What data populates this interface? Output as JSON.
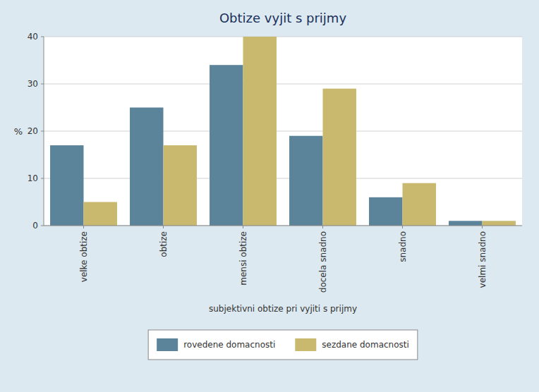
{
  "chart_data": {
    "type": "bar",
    "title": "Obtize vyjit s prijmy",
    "xlabel": "subjektivni obtize pri vyjiti s prijmy",
    "ylabel": "%",
    "categories": [
      "velke obtize",
      "obtize",
      "mensi obtize",
      "docela snadno",
      "snadno",
      "velmi snadno"
    ],
    "series": [
      {
        "name": "rovedene domacnosti",
        "color": "#5b849a",
        "values": [
          17,
          25,
          34,
          19,
          6,
          1
        ]
      },
      {
        "name": "sezdane domacnosti",
        "color": "#c8b96e",
        "values": [
          5,
          17,
          40,
          29,
          9,
          1
        ]
      }
    ],
    "ylim": [
      0,
      40
    ],
    "yticks": [
      0,
      10,
      20,
      30,
      40
    ],
    "grid": true,
    "legend": "bottom"
  }
}
